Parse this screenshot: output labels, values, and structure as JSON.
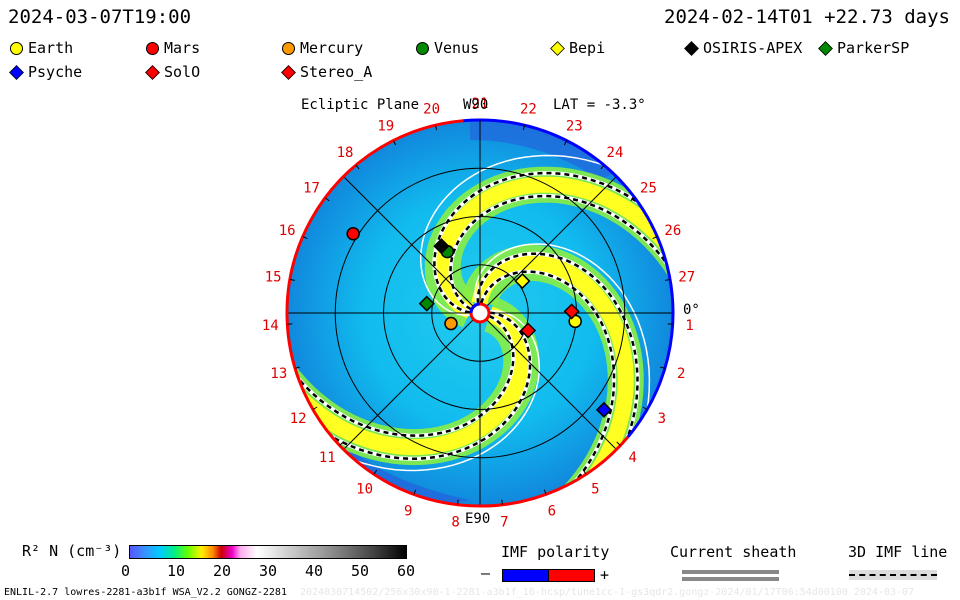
{
  "header": {
    "left_time": "2024-03-07T19:00",
    "right_time": "2024-02-14T01 +22.73 days"
  },
  "legend": [
    {
      "name": "Earth",
      "shape": "circle",
      "color": "#ffff00"
    },
    {
      "name": "Mars",
      "shape": "circle",
      "color": "#ff0000"
    },
    {
      "name": "Mercury",
      "shape": "circle",
      "color": "#ff9900"
    },
    {
      "name": "Venus",
      "shape": "circle",
      "color": "#008800"
    },
    {
      "name": "Bepi",
      "shape": "diamond",
      "color": "#ffff00"
    },
    {
      "name": "OSIRIS-APEX",
      "shape": "diamond",
      "color": "#000000"
    },
    {
      "name": "ParkerSP",
      "shape": "diamond",
      "color": "#008800"
    },
    {
      "name": "Psyche",
      "shape": "diamond",
      "color": "#0000ff"
    },
    {
      "name": "SolO",
      "shape": "diamond",
      "color": "#ff0000"
    },
    {
      "name": "Stereo_A",
      "shape": "diamond",
      "color": "#ff0000"
    }
  ],
  "chart_data": {
    "type": "heatmap",
    "title": "Ecliptic Plane",
    "top_label": "W90",
    "bottom_label": "E90",
    "lat_label": "LAT = -3.3°",
    "zero_label": "0°",
    "carrington_ticks": [
      "27",
      "1",
      "2",
      "3",
      "4",
      "5",
      "6",
      "7",
      "8",
      "9",
      "10",
      "11",
      "12",
      "13",
      "14",
      "15",
      "16",
      "17",
      "18",
      "19",
      "20",
      "21",
      "22",
      "23",
      "24",
      "25",
      "26"
    ],
    "objects": [
      {
        "name": "Earth",
        "shape": "circle",
        "color": "#ffff00",
        "r_au": 0.99,
        "angle_deg": -5
      },
      {
        "name": "Mars",
        "shape": "circle",
        "color": "#ff0000",
        "r_au": 1.55,
        "angle_deg": 148
      },
      {
        "name": "Mercury",
        "shape": "circle",
        "color": "#ff9900",
        "r_au": 0.32,
        "angle_deg": 200
      },
      {
        "name": "Venus",
        "shape": "circle",
        "color": "#008800",
        "r_au": 0.72,
        "angle_deg": 118
      },
      {
        "name": "Bepi",
        "shape": "diamond",
        "color": "#ffff00",
        "r_au": 0.55,
        "angle_deg": 37
      },
      {
        "name": "OSIRIS-APEX",
        "shape": "diamond",
        "color": "#000000",
        "r_au": 0.8,
        "angle_deg": 120
      },
      {
        "name": "ParkerSP",
        "shape": "diamond",
        "color": "#008800",
        "r_au": 0.56,
        "angle_deg": 170
      },
      {
        "name": "Psyche",
        "shape": "diamond",
        "color": "#0000ff",
        "r_au": 1.63,
        "angle_deg": -38
      },
      {
        "name": "SolO",
        "shape": "diamond",
        "color": "#ff0000",
        "r_au": 0.53,
        "angle_deg": -20
      },
      {
        "name": "Stereo_A",
        "shape": "diamond",
        "color": "#ff0000",
        "r_au": 0.95,
        "angle_deg": 1
      }
    ],
    "rings_au": [
      0.5,
      1.0,
      1.5
    ],
    "colorbar": {
      "label": "R² N (cm⁻³)",
      "ticks": [
        "0",
        "10",
        "20",
        "30",
        "40",
        "50",
        "60"
      ],
      "range": [
        0,
        60
      ]
    }
  },
  "bottom_legends": {
    "imf_title": "IMF polarity",
    "imf_minus": "–",
    "imf_plus": "+",
    "sheath_title": "Current sheath",
    "imf3d_title": "3D IMF line"
  },
  "footer": {
    "left": "ENLIL-2.7 lowres-2281-a3b1f WSA_V2.2 GONGZ-2281",
    "faint": "2024030714502/256x30x90-1-2281-a3b1f_16-hcsp/tune1cc-1-gs3qdr2.gongz-2024/01/17T06:54d00100  2024-03-07"
  }
}
